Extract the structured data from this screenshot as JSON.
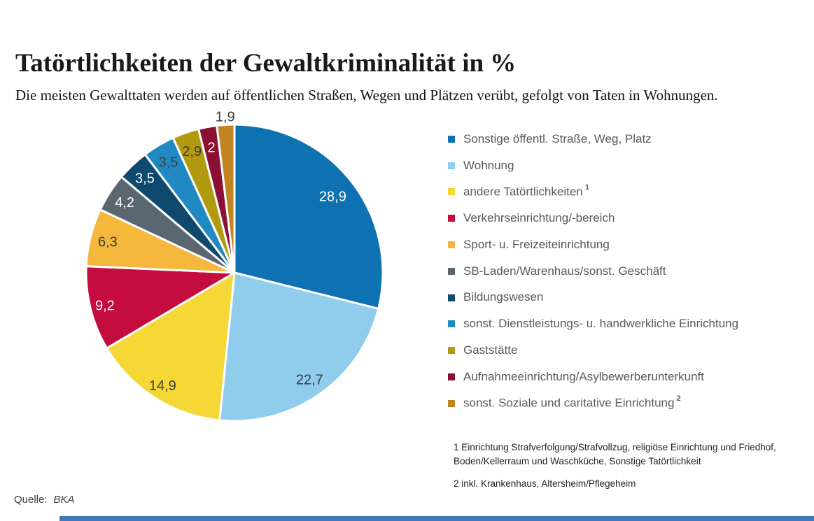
{
  "header": {
    "title": "Tatörtlichkeiten der Gewaltkriminalität in %",
    "subtitle": "Die meisten Gewalttaten werden auf öffentlichen Straßen, Wegen und Plätzen verübt, gefolgt von Taten in Wohnungen."
  },
  "chart_data": {
    "type": "pie",
    "unit": "%",
    "title": "Tatörtlichkeiten der Gewaltkriminalität in %",
    "start_angle": "12 o'clock, clockwise",
    "total": 100,
    "slices": [
      {
        "label": "Sonstige öffentl. Straße, Weg, Platz",
        "value": 28.9,
        "display": "28,9",
        "color": "#0E72B2",
        "label_color": "#FFFFFF",
        "label_r": 0.84
      },
      {
        "label": "Wohnung",
        "value": 22.7,
        "display": "22,7",
        "color": "#90CCEB",
        "label_color": "#3C3C3C",
        "label_r": 0.88
      },
      {
        "label": "andere Tatörtlichkeiten",
        "value": 14.9,
        "display": "14,9",
        "color": "#F5D836",
        "label_color": "#3C3C3C",
        "label_r": 0.9,
        "footnote": "1"
      },
      {
        "label": "Verkehrseinrichtung/-bereich",
        "value": 9.2,
        "display": "9,2",
        "color": "#C40C3E",
        "label_color": "#FFFFFF",
        "label_r": 0.9
      },
      {
        "label": "Sport- u. Freizeiteinrichtung",
        "value": 6.3,
        "display": "6,3",
        "color": "#F5B83D",
        "label_color": "#3C3C3C",
        "label_r": 0.88
      },
      {
        "label": "SB-Laden/Warenhaus/sonst. Geschäft",
        "value": 4.2,
        "display": "4,2",
        "color": "#5A6670",
        "label_color": "#FFFFFF",
        "label_r": 0.88
      },
      {
        "label": "Bildungswesen",
        "value": 3.5,
        "display": "3,5",
        "color": "#0F4A6E",
        "label_color": "#FFFFFF",
        "label_r": 0.88
      },
      {
        "label": "sonst. Dienstleistungs- u. handwerkliche Einrichtung",
        "value": 3.5,
        "display": "3,5",
        "color": "#2089C2",
        "label_color": "#3C3C3C",
        "label_r": 0.87
      },
      {
        "label": "Gaststätte",
        "value": 2.9,
        "display": "2,9",
        "color": "#B29A0F",
        "label_color": "#3C3C3C",
        "label_r": 0.87
      },
      {
        "label": "Aufnahmeeinrichtung/Asylbewerberunterkunft",
        "value": 2.0,
        "display": "2",
        "color": "#8C1034",
        "label_color": "#FFFFFF",
        "label_r": 0.86
      },
      {
        "label": "sonst. Soziale und caritative Einrichtung",
        "value": 1.9,
        "display": "1,9",
        "color": "#C08520",
        "label_color": "#3C3C3C",
        "label_r": 1.055,
        "outside": true,
        "footnote": "2"
      }
    ]
  },
  "footnotes": [
    "1 Einrichtung Strafverfolgung/Strafvollzug, religiöse Einrichtung und Friedhof, Boden/Kellerraum und Waschküche, Sonstige Tatörtlichkeit",
    "2 inkl. Krankenhaus, Altersheim/Pflegeheim"
  ],
  "source": {
    "label": "Quelle:",
    "value": "BKA"
  },
  "colors": {
    "accent_bar": "#4379BB",
    "label_dark": "#3C3C3C",
    "legend_text": "#59595B",
    "slice_separator": "#FFFFFF"
  }
}
